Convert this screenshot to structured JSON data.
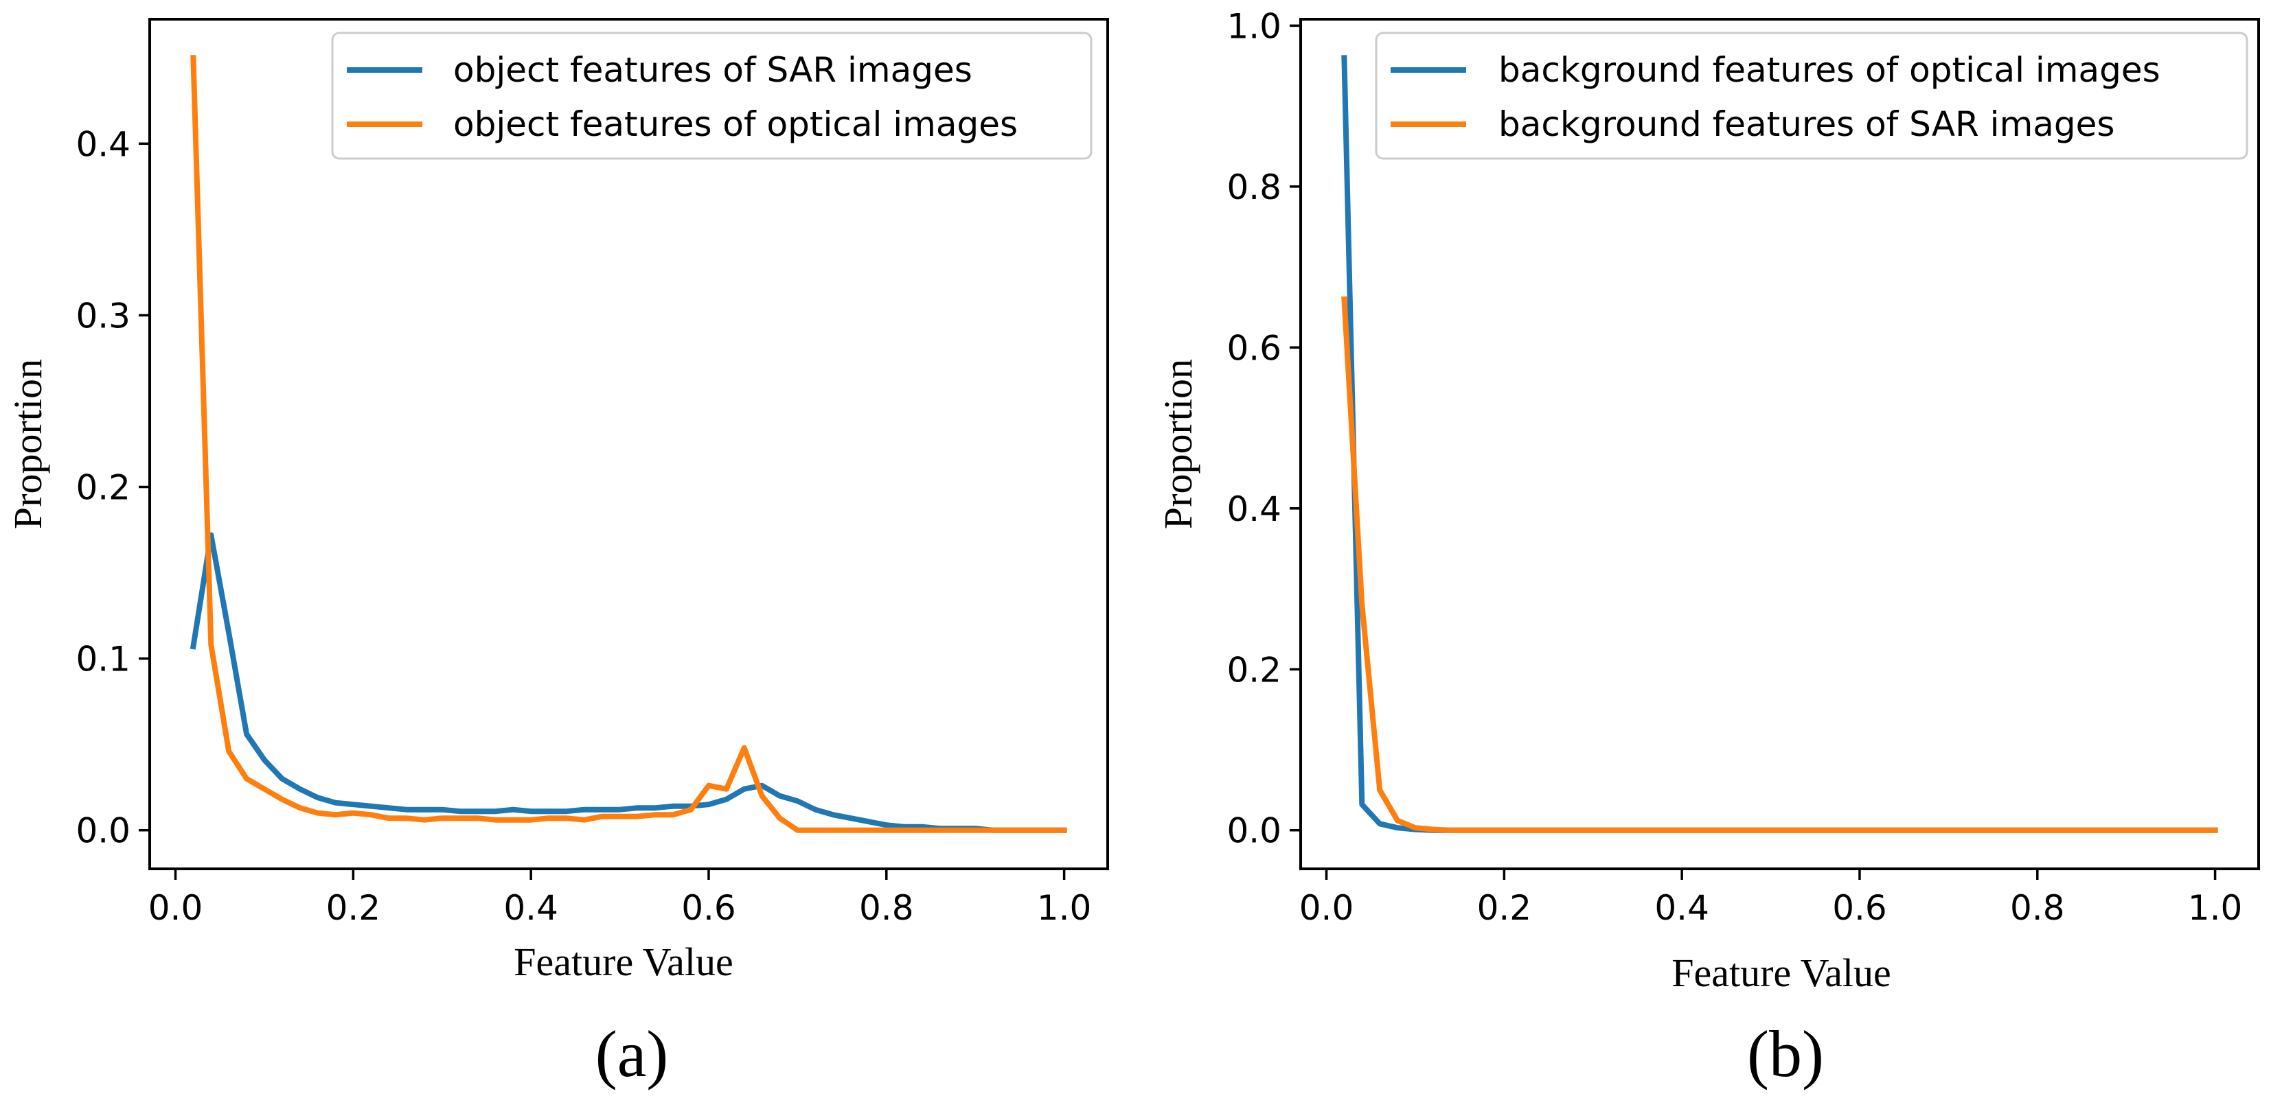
{
  "chart_data": [
    {
      "type": "line",
      "caption": "(a)",
      "xlabel": "Feature Value",
      "ylabel": "Proportion",
      "xlim": [
        -0.029,
        1.049
      ],
      "ylim": [
        -0.0225,
        0.4725
      ],
      "xticks": [
        "0.0",
        "0.2",
        "0.4",
        "0.6",
        "0.8",
        "1.0"
      ],
      "yticks": [
        "0.0",
        "0.1",
        "0.2",
        "0.3",
        "0.4"
      ],
      "grid": false,
      "legend_position": "top-right",
      "x": [
        0.02,
        0.04,
        0.06,
        0.08,
        0.1,
        0.12,
        0.14,
        0.16,
        0.18,
        0.2,
        0.22,
        0.24,
        0.26,
        0.28,
        0.3,
        0.32,
        0.34,
        0.36,
        0.38,
        0.4,
        0.42,
        0.44,
        0.46,
        0.48,
        0.5,
        0.52,
        0.54,
        0.56,
        0.58,
        0.6,
        0.62,
        0.64,
        0.66,
        0.68,
        0.7,
        0.72,
        0.74,
        0.76,
        0.78,
        0.8,
        0.82,
        0.84,
        0.86,
        0.88,
        0.9,
        0.92,
        0.94,
        0.96,
        0.98,
        1.0
      ],
      "series": [
        {
          "name": "object features of SAR images",
          "color": "#1f77b4",
          "values": [
            0.107,
            0.172,
            0.115,
            0.056,
            0.041,
            0.03,
            0.024,
            0.019,
            0.016,
            0.015,
            0.014,
            0.013,
            0.012,
            0.012,
            0.012,
            0.011,
            0.011,
            0.011,
            0.012,
            0.011,
            0.011,
            0.011,
            0.012,
            0.012,
            0.012,
            0.013,
            0.013,
            0.014,
            0.014,
            0.015,
            0.018,
            0.024,
            0.026,
            0.02,
            0.017,
            0.012,
            0.009,
            0.007,
            0.005,
            0.003,
            0.002,
            0.002,
            0.001,
            0.001,
            0.001,
            0.0,
            0.0,
            0.0,
            0.0,
            0.0
          ]
        },
        {
          "name": "object features of optical images",
          "color": "#ff7f0e",
          "values": [
            0.45,
            0.108,
            0.046,
            0.03,
            0.024,
            0.018,
            0.013,
            0.01,
            0.009,
            0.01,
            0.009,
            0.007,
            0.007,
            0.006,
            0.007,
            0.007,
            0.007,
            0.006,
            0.006,
            0.006,
            0.007,
            0.007,
            0.006,
            0.008,
            0.008,
            0.008,
            0.009,
            0.009,
            0.012,
            0.026,
            0.024,
            0.048,
            0.02,
            0.007,
            0.0,
            0.0,
            0.0,
            0.0,
            0.0,
            0.0,
            0.0,
            0.0,
            0.0,
            0.0,
            0.0,
            0.0,
            0.0,
            0.0,
            0.0,
            0.0
          ]
        }
      ]
    },
    {
      "type": "line",
      "caption": "(b)",
      "xlabel": "Feature Value",
      "ylabel": "Proportion",
      "xlim": [
        -0.029,
        1.049
      ],
      "ylim": [
        -0.048,
        1.008
      ],
      "xticks": [
        "0.0",
        "0.2",
        "0.4",
        "0.6",
        "0.8",
        "1.0"
      ],
      "yticks": [
        "0.0",
        "0.2",
        "0.4",
        "0.6",
        "0.8",
        "1.0"
      ],
      "grid": false,
      "legend_position": "top-right",
      "x": [
        0.02,
        0.04,
        0.06,
        0.08,
        0.1,
        0.12,
        0.14,
        0.16,
        0.18,
        0.2,
        0.22,
        0.24,
        0.26,
        0.28,
        0.3,
        0.32,
        0.34,
        0.36,
        0.38,
        0.4,
        0.42,
        0.44,
        0.46,
        0.48,
        0.5,
        0.52,
        0.54,
        0.56,
        0.58,
        0.6,
        0.62,
        0.64,
        0.66,
        0.68,
        0.7,
        0.72,
        0.74,
        0.76,
        0.78,
        0.8,
        0.82,
        0.84,
        0.86,
        0.88,
        0.9,
        0.92,
        0.94,
        0.96,
        0.98,
        1.0
      ],
      "series": [
        {
          "name": "background features of optical images",
          "color": "#1f77b4",
          "values": [
            0.96,
            0.032,
            0.008,
            0.003,
            0.001,
            0.0,
            0.0,
            0.0,
            0.0,
            0.0,
            0.0,
            0.0,
            0.0,
            0.0,
            0.0,
            0.0,
            0.0,
            0.0,
            0.0,
            0.0,
            0.0,
            0.0,
            0.0,
            0.0,
            0.0,
            0.0,
            0.0,
            0.0,
            0.0,
            0.0,
            0.0,
            0.0,
            0.0,
            0.0,
            0.0,
            0.0,
            0.0,
            0.0,
            0.0,
            0.0,
            0.0,
            0.0,
            0.0,
            0.0,
            0.0,
            0.0,
            0.0,
            0.0,
            0.0,
            0.0
          ]
        },
        {
          "name": "background features of SAR images",
          "color": "#ff7f0e",
          "values": [
            0.66,
            0.28,
            0.05,
            0.012,
            0.003,
            0.001,
            0.0,
            0.0,
            0.0,
            0.0,
            0.0,
            0.0,
            0.0,
            0.0,
            0.0,
            0.0,
            0.0,
            0.0,
            0.0,
            0.0,
            0.0,
            0.0,
            0.0,
            0.0,
            0.0,
            0.0,
            0.0,
            0.0,
            0.0,
            0.0,
            0.0,
            0.0,
            0.0,
            0.0,
            0.0,
            0.0,
            0.0,
            0.0,
            0.0,
            0.0,
            0.0,
            0.0,
            0.0,
            0.0,
            0.0,
            0.0,
            0.0,
            0.0,
            0.0,
            0.0
          ]
        }
      ]
    }
  ]
}
